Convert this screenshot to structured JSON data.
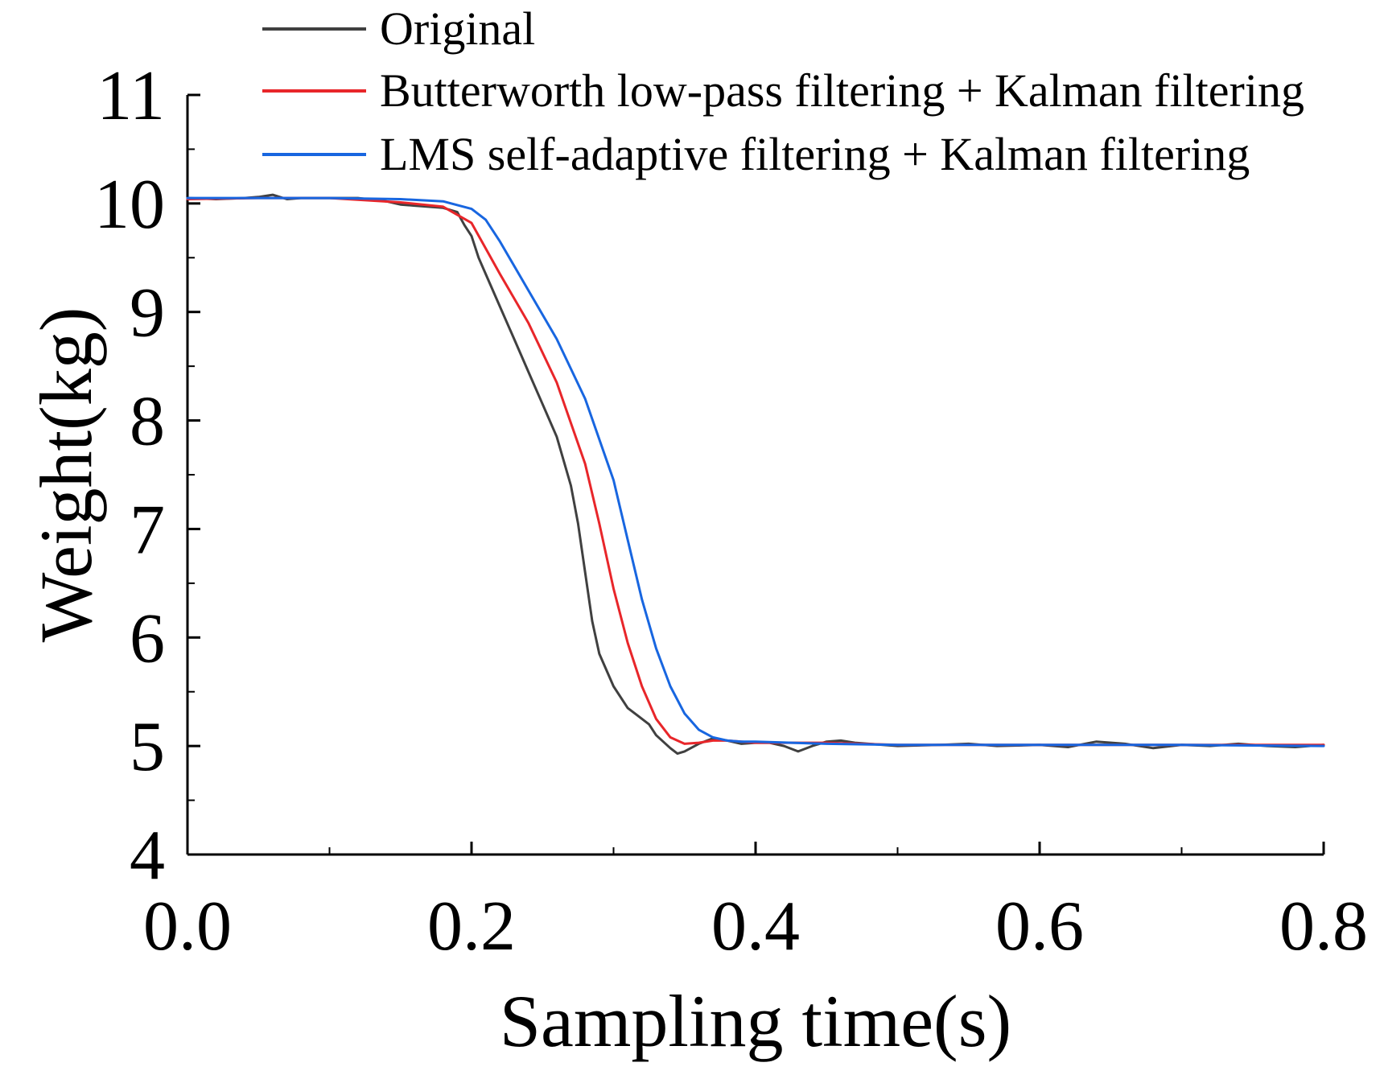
{
  "chart_data": {
    "type": "line",
    "title": "",
    "xlabel": "Sampling time(s)",
    "ylabel": "Weight(kg)",
    "xlim": [
      0.0,
      0.8
    ],
    "ylim": [
      4,
      11
    ],
    "x_ticks": [
      "0.0",
      "0.2",
      "0.4",
      "0.6",
      "0.8"
    ],
    "y_ticks": [
      "4",
      "5",
      "6",
      "7",
      "8",
      "9",
      "10",
      "11"
    ],
    "legend_position": "top",
    "grid": false,
    "series": [
      {
        "name": "Original",
        "color": "#404040",
        "x": [
          0.0,
          0.02,
          0.04,
          0.05,
          0.06,
          0.07,
          0.08,
          0.1,
          0.12,
          0.14,
          0.15,
          0.16,
          0.18,
          0.19,
          0.195,
          0.2,
          0.205,
          0.21,
          0.22,
          0.23,
          0.24,
          0.25,
          0.26,
          0.27,
          0.275,
          0.28,
          0.285,
          0.29,
          0.3,
          0.31,
          0.32,
          0.325,
          0.33,
          0.34,
          0.345,
          0.35,
          0.36,
          0.37,
          0.38,
          0.39,
          0.4,
          0.41,
          0.42,
          0.43,
          0.44,
          0.45,
          0.46,
          0.47,
          0.5,
          0.53,
          0.55,
          0.57,
          0.6,
          0.62,
          0.64,
          0.66,
          0.68,
          0.7,
          0.72,
          0.74,
          0.76,
          0.78,
          0.8
        ],
        "y": [
          10.05,
          10.04,
          10.05,
          10.06,
          10.08,
          10.04,
          10.05,
          10.05,
          10.05,
          10.02,
          9.99,
          9.98,
          9.96,
          9.92,
          9.8,
          9.7,
          9.5,
          9.35,
          9.05,
          8.75,
          8.45,
          8.15,
          7.85,
          7.4,
          7.05,
          6.6,
          6.15,
          5.85,
          5.55,
          5.35,
          5.25,
          5.2,
          5.1,
          4.98,
          4.93,
          4.95,
          5.02,
          5.07,
          5.05,
          5.02,
          5.03,
          5.03,
          5.0,
          4.95,
          5.0,
          5.04,
          5.05,
          5.03,
          5.0,
          5.01,
          5.02,
          5.0,
          5.01,
          4.99,
          5.04,
          5.02,
          4.98,
          5.01,
          5.0,
          5.02,
          5.0,
          4.99,
          5.01
        ]
      },
      {
        "name": "Butterworth low-pass filtering + Kalman filtering",
        "color": "#e8262a",
        "x": [
          0.0,
          0.05,
          0.1,
          0.15,
          0.18,
          0.2,
          0.22,
          0.24,
          0.26,
          0.28,
          0.29,
          0.3,
          0.31,
          0.32,
          0.33,
          0.34,
          0.35,
          0.36,
          0.37,
          0.38,
          0.4,
          0.45,
          0.5,
          0.6,
          0.7,
          0.8
        ],
        "y": [
          10.04,
          10.05,
          10.05,
          10.01,
          9.97,
          9.82,
          9.35,
          8.9,
          8.35,
          7.6,
          7.05,
          6.45,
          5.95,
          5.55,
          5.25,
          5.08,
          5.02,
          5.03,
          5.05,
          5.05,
          5.03,
          5.03,
          5.01,
          5.01,
          5.01,
          5.01
        ]
      },
      {
        "name": "LMS self-adaptive filtering + Kalman filtering",
        "color": "#1866e0",
        "x": [
          0.0,
          0.05,
          0.1,
          0.15,
          0.18,
          0.2,
          0.21,
          0.22,
          0.24,
          0.26,
          0.28,
          0.3,
          0.31,
          0.32,
          0.33,
          0.34,
          0.35,
          0.36,
          0.37,
          0.38,
          0.39,
          0.4,
          0.45,
          0.5,
          0.6,
          0.7,
          0.8
        ],
        "y": [
          10.05,
          10.05,
          10.05,
          10.04,
          10.02,
          9.95,
          9.85,
          9.65,
          9.2,
          8.75,
          8.2,
          7.45,
          6.9,
          6.35,
          5.9,
          5.55,
          5.3,
          5.15,
          5.08,
          5.05,
          5.04,
          5.04,
          5.02,
          5.01,
          5.01,
          5.01,
          5.0
        ]
      }
    ]
  }
}
